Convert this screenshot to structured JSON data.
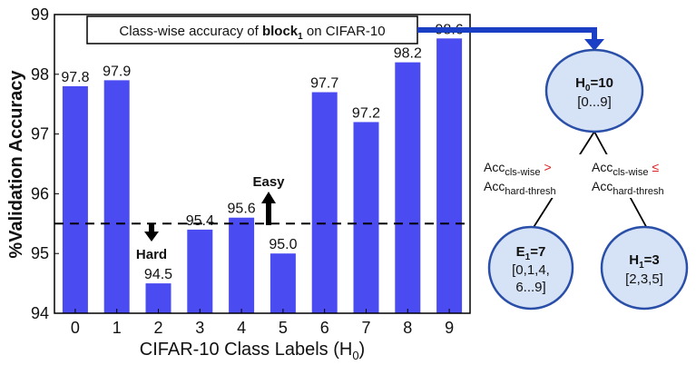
{
  "chart_data": {
    "type": "bar",
    "title": {
      "prefix": "Class-wise accuracy of ",
      "bold": "block",
      "bold_sub": "1",
      "suffix": " on CIFAR-10"
    },
    "xlabel": "CIFAR-10 Class Labels (H",
    "xlabel_sub": "0",
    "xlabel_suffix": ")",
    "ylabel": "%Validation Accuracy",
    "ylim": [
      94,
      99
    ],
    "yticks": [
      "94",
      "95",
      "96",
      "97",
      "98",
      "99"
    ],
    "categories": [
      "0",
      "1",
      "2",
      "3",
      "4",
      "5",
      "6",
      "7",
      "8",
      "9"
    ],
    "values": [
      97.8,
      97.9,
      94.5,
      95.4,
      95.6,
      95.0,
      97.7,
      97.2,
      98.2,
      98.6
    ],
    "data_labels": [
      "97.8",
      "97.9",
      "94.5",
      "95.4",
      "95.6",
      "95.0",
      "97.7",
      "97.2",
      "98.2",
      "98.6"
    ],
    "threshold": 95.5,
    "grid": false,
    "bar_color": "#4b4bf2",
    "annotations": {
      "hard": "Hard",
      "easy": "Easy"
    }
  },
  "tree": {
    "link_color": "#1a3fc4",
    "node_fill": "#d6e2f5",
    "node_stroke": "#2a4fa8",
    "root": {
      "label": "H",
      "sub": "0",
      "eq": "=10",
      "range": "[0...9]"
    },
    "left": {
      "label": "E",
      "sub": "1",
      "eq": "=7",
      "line1": "[0,1,4,",
      "line2": "6...9]"
    },
    "right": {
      "label": "H",
      "sub": "1",
      "eq": "=3",
      "range": "[2,3,5]"
    },
    "left_edge": {
      "acc": "Acc",
      "sub1": "cls-wise",
      "cmp": ">",
      "acc2": "Acc",
      "sub2": "hard-thresh"
    },
    "right_edge": {
      "acc": "Acc",
      "sub1": "cls-wise",
      "cmp": "≤",
      "acc2": "Acc",
      "sub2": "hard-thresh"
    }
  }
}
